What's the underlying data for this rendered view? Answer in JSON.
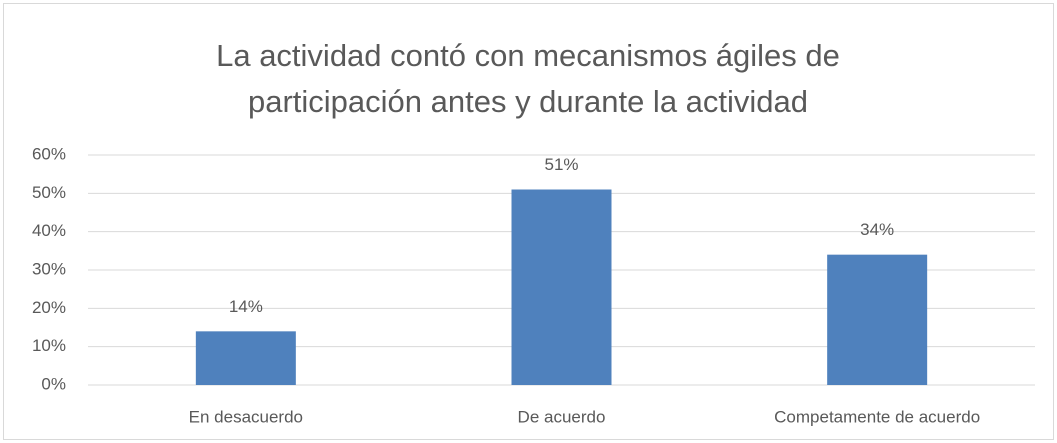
{
  "chart_data": {
    "type": "bar",
    "title": "La actividad contó con mecanismos ágiles de participación antes y durante la actividad",
    "categories": [
      "En desacuerdo",
      "De acuerdo",
      "Competamente de acuerdo"
    ],
    "values": [
      14,
      51,
      34
    ],
    "value_labels": [
      "14%",
      "51%",
      "34%"
    ],
    "color": "#4f81bd",
    "ylim": [
      0,
      60
    ],
    "yticks": [
      {
        "value": 0,
        "label": "0%"
      },
      {
        "value": 10,
        "label": "10%"
      },
      {
        "value": 20,
        "label": "20%"
      },
      {
        "value": 30,
        "label": "30%"
      },
      {
        "value": 40,
        "label": "40%"
      },
      {
        "value": 50,
        "label": "50%"
      },
      {
        "value": 60,
        "label": "60%"
      }
    ],
    "grid": true
  }
}
